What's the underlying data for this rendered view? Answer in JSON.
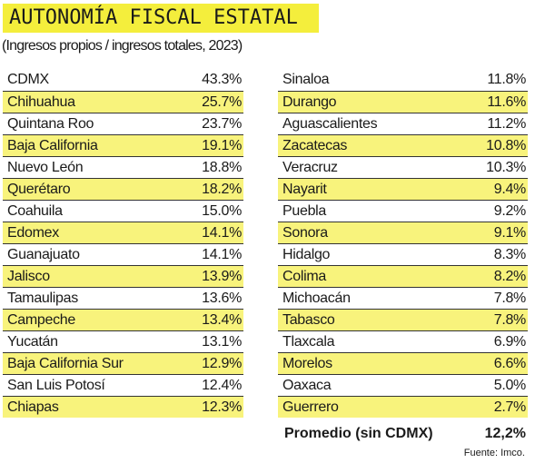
{
  "chart_data": {
    "type": "table",
    "title": "AUTONOMÍA FISCAL ESTATAL",
    "subtitle": "(Ingresos propios / ingresos totales, 2023)",
    "left": [
      {
        "state": "CDMX",
        "value": "43.3%"
      },
      {
        "state": "Chihuahua",
        "value": "25.7%"
      },
      {
        "state": "Quintana Roo",
        "value": "23.7%"
      },
      {
        "state": "Baja California",
        "value": "19.1%"
      },
      {
        "state": "Nuevo León",
        "value": "18.8%"
      },
      {
        "state": "Querétaro",
        "value": "18.2%"
      },
      {
        "state": "Coahuila",
        "value": "15.0%"
      },
      {
        "state": "Edomex",
        "value": "14.1%"
      },
      {
        "state": "Guanajuato",
        "value": "14.1%"
      },
      {
        "state": "Jalisco",
        "value": "13.9%"
      },
      {
        "state": "Tamaulipas",
        "value": "13.6%"
      },
      {
        "state": "Campeche",
        "value": "13.4%"
      },
      {
        "state": "Yucatán",
        "value": "13.1%"
      },
      {
        "state": "Baja California Sur",
        "value": "12.9%"
      },
      {
        "state": "San Luis Potosí",
        "value": "12.4%"
      },
      {
        "state": "Chiapas",
        "value": "12.3%"
      }
    ],
    "right": [
      {
        "state": "Sinaloa",
        "value": "11.8%"
      },
      {
        "state": "Durango",
        "value": "11.6%"
      },
      {
        "state": "Aguascalientes",
        "value": "11.2%"
      },
      {
        "state": "Zacatecas",
        "value": "10.8%"
      },
      {
        "state": "Veracruz",
        "value": "10.3%"
      },
      {
        "state": "Nayarit",
        "value": "9.4%"
      },
      {
        "state": "Puebla",
        "value": "9.2%"
      },
      {
        "state": "Sonora",
        "value": "9.1%"
      },
      {
        "state": "Hidalgo",
        "value": "8.3%"
      },
      {
        "state": "Colima",
        "value": "8.2%"
      },
      {
        "state": "Michoacán",
        "value": "7.8%"
      },
      {
        "state": "Tabasco",
        "value": "7.8%"
      },
      {
        "state": "Tlaxcala",
        "value": "6.9%"
      },
      {
        "state": "Morelos",
        "value": "6.6%"
      },
      {
        "state": "Oaxaca",
        "value": "5.0%"
      },
      {
        "state": "Guerrero",
        "value": "2.7%"
      }
    ],
    "average_label": "Promedio (sin CDMX)",
    "average_value": "12,2%",
    "source": "Fuente: Imco.",
    "colors": {
      "title_bg": "#f4ee3c",
      "stripe": "#f8f37c"
    }
  }
}
